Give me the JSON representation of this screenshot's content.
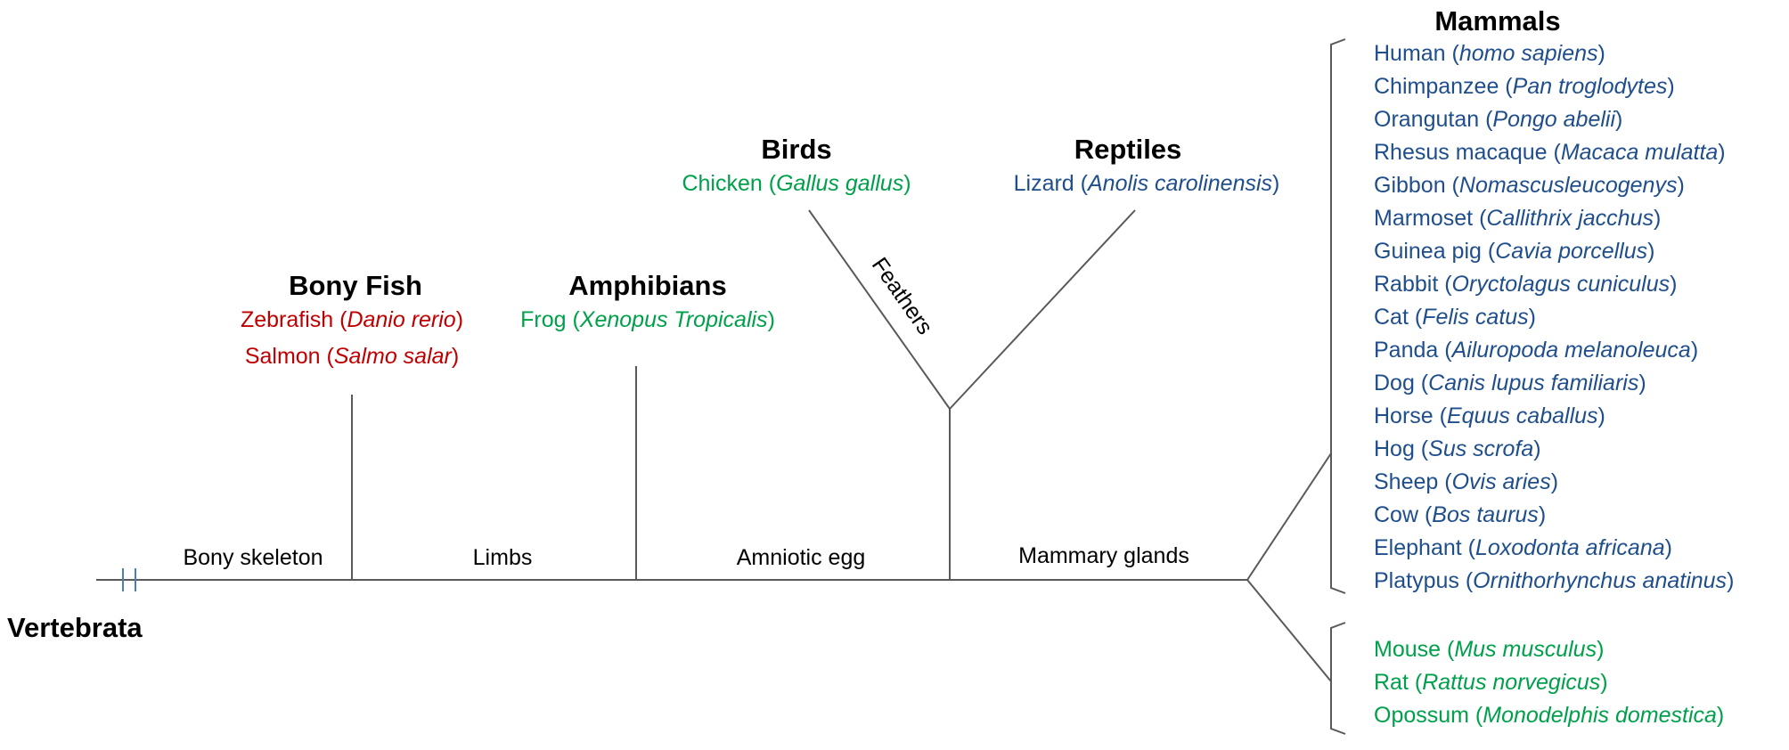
{
  "colors": {
    "branch": "#595959",
    "break_mark": "#4a7ebb",
    "red": "#c00000",
    "green": "#00a04b",
    "blue": "#1f4e8c"
  },
  "root": {
    "label": "Vertebrata"
  },
  "traits": {
    "bony_skeleton": "Bony skeleton",
    "limbs": "Limbs",
    "amniotic_egg": "Amniotic egg",
    "mammary_glands": "Mammary glands",
    "feathers": "Feathers"
  },
  "groups": {
    "bony_fish": {
      "title": "Bony Fish",
      "species": [
        {
          "common": "Zebrafish",
          "latin": "Danio rerio",
          "color": "red"
        },
        {
          "common": "Salmon",
          "latin": "Salmo salar",
          "color": "red"
        }
      ]
    },
    "amphibians": {
      "title": "Amphibians",
      "species": [
        {
          "common": "Frog",
          "latin": "Xenopus Tropicalis",
          "color": "green"
        }
      ]
    },
    "birds": {
      "title": "Birds",
      "species": [
        {
          "common": "Chicken",
          "latin": "Gallus gallus",
          "color": "green"
        }
      ]
    },
    "reptiles": {
      "title": "Reptiles",
      "species": [
        {
          "common": "Lizard",
          "latin": "Anolis carolinensis",
          "color": "blue"
        }
      ]
    },
    "mammals": {
      "title": "Mammals",
      "species": [
        {
          "common": "Human",
          "latin": "homo sapiens",
          "color": "blue"
        },
        {
          "common": "Chimpanzee",
          "latin": "Pan troglodytes",
          "color": "blue"
        },
        {
          "common": "Orangutan",
          "latin": "Pongo abelii",
          "color": "blue"
        },
        {
          "common": "Rhesus macaque",
          "latin": "Macaca mulatta",
          "color": "blue"
        },
        {
          "common": "Gibbon",
          "latin": "Nomascusleucogenys",
          "color": "blue"
        },
        {
          "common": "Marmoset",
          "latin": "Callithrix jacchus",
          "color": "blue"
        },
        {
          "common": "Guinea pig",
          "latin": "Cavia porcellus",
          "color": "blue"
        },
        {
          "common": "Rabbit",
          "latin": "Oryctolagus cuniculus",
          "color": "blue"
        },
        {
          "common": "Cat",
          "latin": "Felis catus",
          "color": "blue"
        },
        {
          "common": "Panda",
          "latin": "Ailuropoda melanoleuca",
          "color": "blue"
        },
        {
          "common": "Dog",
          "latin": "Canis lupus familiaris",
          "color": "blue"
        },
        {
          "common": "Horse",
          "latin": "Equus caballus",
          "color": "blue"
        },
        {
          "common": "Hog",
          "latin": "Sus scrofa",
          "color": "blue"
        },
        {
          "common": "Sheep",
          "latin": "Ovis aries",
          "color": "blue"
        },
        {
          "common": "Cow",
          "latin": "Bos taurus",
          "color": "blue"
        },
        {
          "common": "Elephant",
          "latin": "Loxodonta africana",
          "color": "blue"
        },
        {
          "common": "Platypus",
          "latin": "Ornithorhynchus anatinus",
          "color": "blue"
        }
      ]
    },
    "other_mammals": {
      "species": [
        {
          "common": "Mouse",
          "latin": "Mus musculus",
          "color": "green"
        },
        {
          "common": "Rat",
          "latin": "Rattus norvegicus",
          "color": "green"
        },
        {
          "common": "Opossum",
          "latin": "Monodelphis domestica",
          "color": "green"
        }
      ]
    }
  }
}
